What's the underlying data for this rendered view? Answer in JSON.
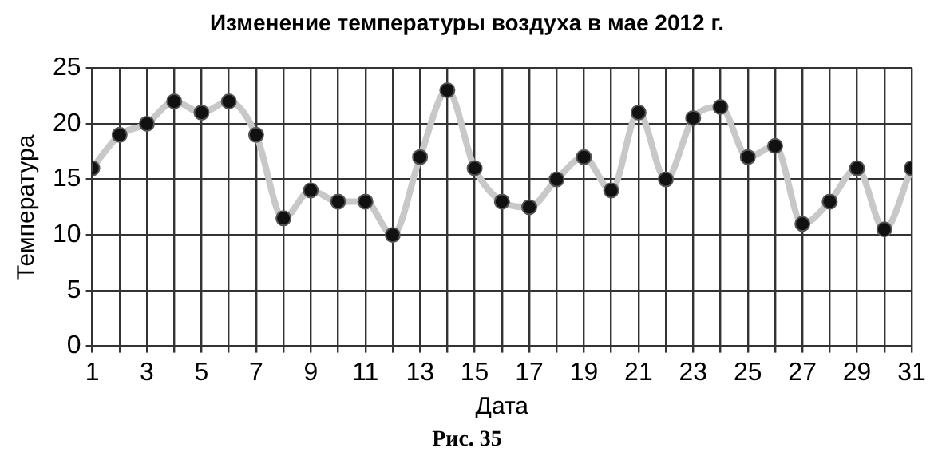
{
  "chart_data": {
    "type": "line",
    "title": "Изменение температуры воздуха в мае 2012 г.",
    "xlabel": "Дата",
    "ylabel": "Температура",
    "annotations": [
      "Рис. 35"
    ],
    "x": [
      1,
      2,
      3,
      4,
      5,
      6,
      7,
      8,
      9,
      10,
      11,
      12,
      13,
      14,
      15,
      16,
      17,
      18,
      19,
      20,
      21,
      22,
      23,
      24,
      25,
      26,
      27,
      28,
      29,
      30,
      31
    ],
    "series": [
      {
        "color": "#c8c8c8",
        "values": [
          16,
          19,
          20,
          22,
          21,
          22,
          19,
          11.5,
          14,
          13,
          13,
          10,
          17,
          23,
          16,
          13,
          12.5,
          15,
          17,
          14,
          21,
          15,
          20.5,
          21.5,
          17,
          18,
          11,
          13,
          16,
          10.5,
          16
        ]
      }
    ],
    "xlim": [
      1,
      31
    ],
    "xticks": [
      1,
      {
        "value": 2,
        "label": null
      },
      3,
      {
        "value": 4,
        "label": null
      },
      5,
      {
        "value": 6,
        "label": null
      },
      7,
      {
        "value": 8,
        "label": null
      },
      9,
      {
        "value": 10,
        "label": null
      },
      11,
      {
        "value": 12,
        "label": null
      },
      13,
      {
        "value": 14,
        "label": null
      },
      15,
      {
        "value": 16,
        "label": null
      },
      17,
      {
        "value": 18,
        "label": null
      },
      19,
      {
        "value": 20,
        "label": null
      },
      21,
      {
        "value": 22,
        "label": null
      },
      23,
      {
        "value": 24,
        "label": null
      },
      25,
      {
        "value": 26,
        "label": null
      },
      27,
      {
        "value": 28,
        "label": null
      },
      29,
      {
        "value": 30,
        "label": null
      },
      31
    ],
    "ylim": [
      0,
      25
    ],
    "yticks": [
      0,
      5,
      10,
      15,
      20,
      25
    ],
    "grid": true,
    "marker": "circle",
    "line_style": "solid",
    "legend": false
  }
}
